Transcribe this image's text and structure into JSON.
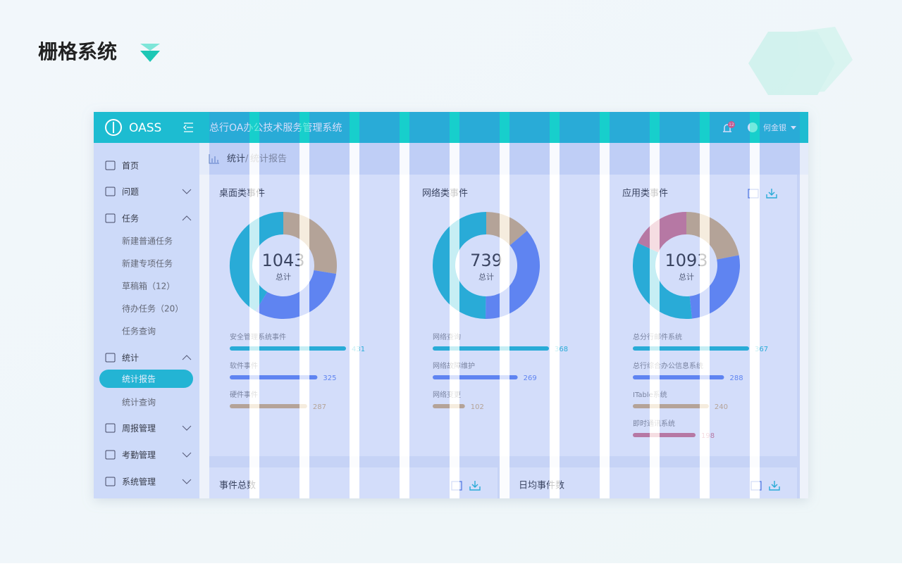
{
  "header": {
    "title": "栅格系统"
  },
  "app": {
    "logo": "OASS",
    "system_title": "总行OA办公技术服务管理系统",
    "notification_count": 12,
    "user": "何金银"
  },
  "sidebar": {
    "items": [
      {
        "label": "首页",
        "icon": true
      },
      {
        "label": "问题",
        "icon": true,
        "chevron": "down"
      },
      {
        "label": "任务",
        "icon": true,
        "chevron": "up"
      },
      {
        "label": "新建普通任务"
      },
      {
        "label": "新建专项任务"
      },
      {
        "label": "草稿箱（12）"
      },
      {
        "label": "待办任务（20）"
      },
      {
        "label": "任务查询"
      },
      {
        "label": "统计",
        "icon": true,
        "chevron": "up"
      },
      {
        "label": "统计报告",
        "active": true
      },
      {
        "label": "统计查询"
      },
      {
        "label": "周报管理",
        "icon": true,
        "chevron": "down"
      },
      {
        "label": "考勤管理",
        "icon": true,
        "chevron": "down"
      },
      {
        "label": "系统管理",
        "icon": true,
        "chevron": "down"
      }
    ]
  },
  "breadcrumb": {
    "parent": "统计",
    "separator": "/",
    "current": "统计报告"
  },
  "panels": [
    {
      "title": "桌面类事件",
      "total": 1043,
      "total_label": "总计",
      "items": [
        {
          "name": "安全管理系统事件",
          "value": 431,
          "color": "#1dbcd1"
        },
        {
          "name": "软件事件",
          "value": 325,
          "color": "#6488f3"
        },
        {
          "name": "硬件事件",
          "value": 287,
          "color": "#d6b27c"
        }
      ]
    },
    {
      "title": "网络类事件",
      "total": 739,
      "total_label": "总计",
      "items": [
        {
          "name": "网络查询",
          "value": 368,
          "color": "#1dbcd1"
        },
        {
          "name": "网络故障维护",
          "value": 269,
          "color": "#6488f3"
        },
        {
          "name": "网络变更",
          "value": 102,
          "color": "#d6b27c"
        }
      ]
    },
    {
      "title": "应用类事件",
      "total": 1093,
      "total_label": "总计",
      "tools": true,
      "items": [
        {
          "name": "总分行邮件系统",
          "value": 367,
          "color": "#1dbcd1"
        },
        {
          "name": "总行综合办公信息系统",
          "value": 288,
          "color": "#6488f3"
        },
        {
          "name": "ITable系统",
          "value": 240,
          "color": "#d6b27c"
        },
        {
          "name": "即时通讯系统",
          "value": 198,
          "color": "#d8788c"
        }
      ]
    }
  ],
  "cards": [
    {
      "title": "事件总数"
    },
    {
      "title": "日均事件数"
    }
  ]
}
